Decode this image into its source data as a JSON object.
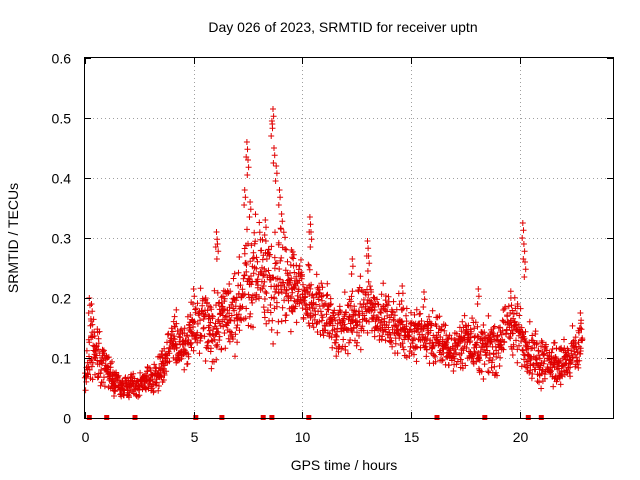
{
  "chart_data": {
    "type": "scatter",
    "title": "Day 026 of 2023, SRMTID for receiver uptn",
    "xlabel": "GPS time / hours",
    "ylabel": "SRMTID / TECUs",
    "xlim": [
      0,
      24.3
    ],
    "ylim": [
      0,
      0.6
    ],
    "x_ticks": [
      0,
      5,
      10,
      15,
      20
    ],
    "x_tick_labels": [
      "0",
      "5",
      "10",
      "15",
      "20"
    ],
    "y_ticks": [
      0,
      0.1,
      0.2,
      0.3,
      0.4,
      0.5,
      0.6
    ],
    "y_tick_labels": [
      "0",
      "0.1",
      "0.2",
      "0.3",
      "0.4",
      "0.5",
      "0.6"
    ],
    "grid": true,
    "marker": "+",
    "color": "#e00000",
    "series": [
      {
        "name": "SRMTID",
        "trend": {
          "x": [
            0,
            0.3,
            0.6,
            1.0,
            1.5,
            2.0,
            2.5,
            3.0,
            3.5,
            4.0,
            4.5,
            5.0,
            5.5,
            6.0,
            6.5,
            7.0,
            7.5,
            8.0,
            8.5,
            9.0,
            9.5,
            10.0,
            10.5,
            11.0,
            11.5,
            12.0,
            12.5,
            13.0,
            13.5,
            14.0,
            14.5,
            15.0,
            15.5,
            16.0,
            16.5,
            17.0,
            17.5,
            18.0,
            18.5,
            19.0,
            19.5,
            20.0,
            20.5,
            21.0,
            21.5,
            22.0,
            22.5,
            22.9
          ],
          "y": [
            0.06,
            0.13,
            0.11,
            0.08,
            0.055,
            0.05,
            0.055,
            0.065,
            0.08,
            0.13,
            0.12,
            0.15,
            0.16,
            0.15,
            0.17,
            0.18,
            0.23,
            0.25,
            0.22,
            0.24,
            0.21,
            0.2,
            0.19,
            0.18,
            0.15,
            0.16,
            0.17,
            0.19,
            0.17,
            0.16,
            0.15,
            0.14,
            0.14,
            0.13,
            0.12,
            0.11,
            0.13,
            0.12,
            0.11,
            0.12,
            0.16,
            0.14,
            0.11,
            0.1,
            0.09,
            0.09,
            0.1,
            0.13
          ],
          "spread": [
            0.02,
            0.05,
            0.04,
            0.03,
            0.02,
            0.02,
            0.02,
            0.02,
            0.03,
            0.04,
            0.04,
            0.04,
            0.05,
            0.05,
            0.05,
            0.06,
            0.07,
            0.08,
            0.08,
            0.08,
            0.06,
            0.05,
            0.05,
            0.05,
            0.04,
            0.05,
            0.05,
            0.05,
            0.05,
            0.04,
            0.04,
            0.04,
            0.04,
            0.04,
            0.04,
            0.03,
            0.04,
            0.04,
            0.04,
            0.04,
            0.05,
            0.04,
            0.04,
            0.04,
            0.03,
            0.03,
            0.04,
            0.04
          ]
        },
        "peaks": [
          {
            "x": 8.65,
            "y": 0.515
          },
          {
            "x": 8.6,
            "y": 0.495
          },
          {
            "x": 8.7,
            "y": 0.45
          },
          {
            "x": 8.8,
            "y": 0.42
          },
          {
            "x": 7.45,
            "y": 0.46
          },
          {
            "x": 7.5,
            "y": 0.43
          },
          {
            "x": 7.35,
            "y": 0.38
          },
          {
            "x": 7.6,
            "y": 0.36
          },
          {
            "x": 8.95,
            "y": 0.38
          },
          {
            "x": 9.05,
            "y": 0.34
          },
          {
            "x": 6.05,
            "y": 0.31
          },
          {
            "x": 6.1,
            "y": 0.29
          },
          {
            "x": 20.15,
            "y": 0.325
          },
          {
            "x": 20.2,
            "y": 0.29
          },
          {
            "x": 20.25,
            "y": 0.26
          },
          {
            "x": 10.35,
            "y": 0.335
          },
          {
            "x": 10.4,
            "y": 0.31
          },
          {
            "x": 13.0,
            "y": 0.295
          },
          {
            "x": 13.05,
            "y": 0.27
          },
          {
            "x": 12.3,
            "y": 0.265
          },
          {
            "x": 8.3,
            "y": 0.33
          },
          {
            "x": 0.2,
            "y": 0.2
          },
          {
            "x": 0.3,
            "y": 0.19
          },
          {
            "x": 5.0,
            "y": 0.215
          },
          {
            "x": 9.5,
            "y": 0.28
          },
          {
            "x": 18.1,
            "y": 0.215
          },
          {
            "x": 14.6,
            "y": 0.22
          },
          {
            "x": 15.6,
            "y": 0.21
          },
          {
            "x": 19.6,
            "y": 0.2
          },
          {
            "x": 22.8,
            "y": 0.175
          }
        ]
      },
      {
        "name": "marks",
        "x": [
          0.2,
          1.0,
          2.3,
          5.1,
          6.3,
          8.2,
          8.6,
          10.3,
          16.2,
          18.4,
          20.4,
          21.0
        ]
      }
    ]
  }
}
